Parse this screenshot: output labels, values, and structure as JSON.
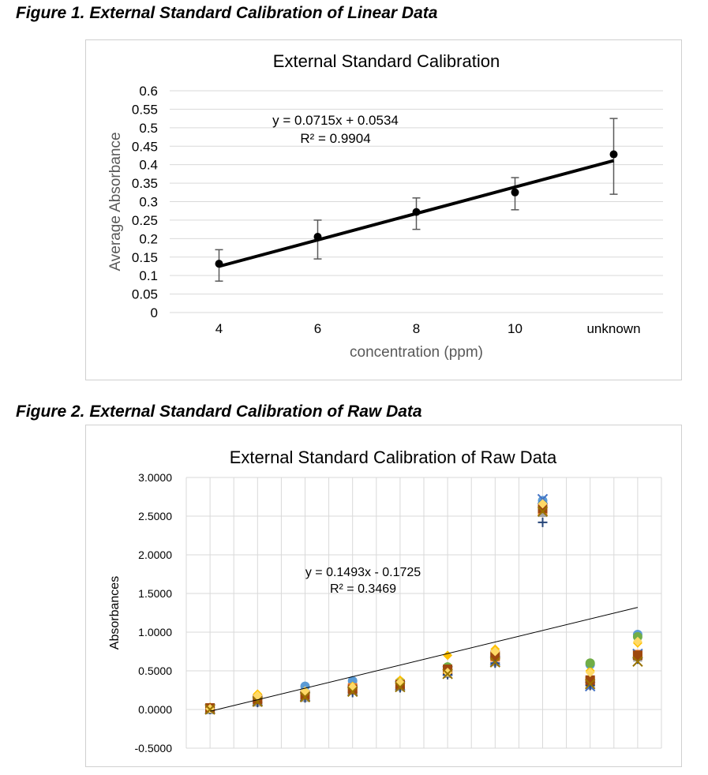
{
  "figures": [
    {
      "caption": "Figure 1. External Standard Calibration of Linear Data"
    },
    {
      "caption": "Figure 2. External Standard Calibration of Raw Data"
    }
  ],
  "chart_data": [
    {
      "type": "line",
      "title": "External Standard Calibration",
      "xlabel": "concentration (ppm)",
      "ylabel": "Average Absorbance",
      "categories": [
        "4",
        "6",
        "8",
        "10",
        "unknown"
      ],
      "ylim": [
        0,
        0.6
      ],
      "yticks": [
        "0",
        "0.05",
        "0.1",
        "0.15",
        "0.2",
        "0.25",
        "0.3",
        "0.35",
        "0.4",
        "0.45",
        "0.5",
        "0.55",
        "0.6"
      ],
      "grid": true,
      "series": [
        {
          "values": [
            0.132,
            0.205,
            0.272,
            0.325,
            0.428
          ],
          "error_high": [
            0.17,
            0.25,
            0.31,
            0.365,
            0.525
          ],
          "error_low": [
            0.085,
            0.145,
            0.225,
            0.278,
            0.32
          ]
        }
      ],
      "trendline": {
        "type": "linear",
        "slope": 0.0715,
        "intercept": 0.0534,
        "equation": "y = 0.0715x + 0.0534",
        "r2_label": "R² = 0.9904"
      },
      "colors": {
        "line": "#000000",
        "grid": "#d9d9d9",
        "error": "#595959",
        "axis_title": "#595959"
      }
    },
    {
      "type": "scatter",
      "title": "External Standard Calibration of Raw Data",
      "xlabel": "",
      "ylabel": "Absorbances",
      "ylim": [
        -0.5,
        3.0
      ],
      "yticks": [
        "-0.5000",
        "0.0000",
        "0.5000",
        "1.0000",
        "1.5000",
        "2.0000",
        "2.5000",
        "3.0000"
      ],
      "grid": true,
      "x": [
        1,
        2,
        3,
        4,
        5,
        6,
        7,
        8,
        9,
        10
      ],
      "series": [
        {
          "color": "#5b9bd5",
          "marker": "circle",
          "values": [
            0.02,
            0.14,
            0.3,
            0.37,
            0.36,
            0.53,
            0.7,
            2.7,
            0.58,
            0.97
          ]
        },
        {
          "color": "#ed7d31",
          "marker": "square",
          "values": [
            0.01,
            0.12,
            0.18,
            0.28,
            0.33,
            0.5,
            0.68,
            2.58,
            0.36,
            0.71
          ]
        },
        {
          "color": "#a5a5a5",
          "marker": "triangle",
          "values": [
            0.0,
            0.1,
            0.16,
            0.25,
            0.3,
            0.47,
            0.62,
            2.55,
            0.32,
            0.68
          ]
        },
        {
          "color": "#ffc000",
          "marker": "diamond",
          "values": [
            0.03,
            0.2,
            0.22,
            0.3,
            0.38,
            0.7,
            0.78,
            2.62,
            0.5,
            0.86
          ]
        },
        {
          "color": "#4472c4",
          "marker": "x",
          "values": [
            0.01,
            0.11,
            0.17,
            0.24,
            0.31,
            0.5,
            0.63,
            2.72,
            0.3,
            0.72
          ]
        },
        {
          "color": "#70ad47",
          "marker": "circle",
          "values": [
            0.02,
            0.15,
            0.2,
            0.27,
            0.34,
            0.55,
            0.72,
            2.64,
            0.6,
            0.94
          ]
        },
        {
          "color": "#264478",
          "marker": "plus",
          "values": [
            0.0,
            0.09,
            0.15,
            0.22,
            0.28,
            0.45,
            0.6,
            2.42,
            0.31,
            0.65
          ]
        },
        {
          "color": "#9e480e",
          "marker": "square",
          "values": [
            0.02,
            0.13,
            0.19,
            0.26,
            0.32,
            0.52,
            0.7,
            2.6,
            0.38,
            0.7
          ]
        },
        {
          "color": "#ffd966",
          "marker": "diamond",
          "values": [
            0.01,
            0.18,
            0.24,
            0.29,
            0.35,
            0.48,
            0.75,
            2.66,
            0.48,
            0.88
          ]
        },
        {
          "color": "#997300",
          "marker": "x",
          "values": [
            0.0,
            0.1,
            0.16,
            0.23,
            0.29,
            0.46,
            0.61,
            2.56,
            0.33,
            0.62
          ]
        }
      ],
      "trendline": {
        "type": "linear",
        "slope": 0.1493,
        "intercept": -0.1725,
        "equation": "y = 0.1493x - 0.1725",
        "r2_label": "R² = 0.3469"
      },
      "colors": {
        "trendline": "#000000",
        "grid": "#d9d9d9"
      }
    }
  ]
}
